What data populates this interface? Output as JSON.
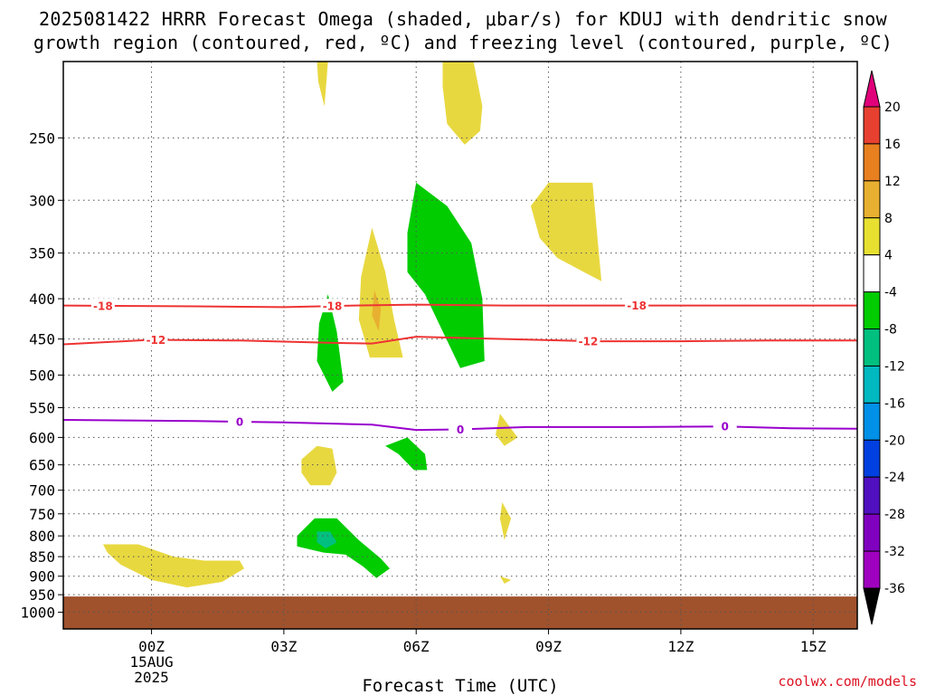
{
  "title_line1": "2025081422 HRRR Forecast Omega (shaded, μbar/s) for KDUJ with dendritic snow",
  "title_line2": "growth region (contoured, red, ºC) and freezing level (contoured, purple, ºC)",
  "credit": "coolwx.com/models",
  "chart_data": {
    "type": "heatmap",
    "xlabel": "Forecast Time (UTC)",
    "x_range_hours": [
      -2,
      16
    ],
    "x_ticks": [
      {
        "hour": 0,
        "lines": [
          "00Z",
          "15AUG",
          "2025"
        ]
      },
      {
        "hour": 3,
        "lines": [
          "03Z"
        ]
      },
      {
        "hour": 6,
        "lines": [
          "06Z"
        ]
      },
      {
        "hour": 9,
        "lines": [
          "09Z"
        ]
      },
      {
        "hour": 12,
        "lines": [
          "12Z"
        ]
      },
      {
        "hour": 15,
        "lines": [
          "15Z"
        ]
      }
    ],
    "y_scale": "log-pressure",
    "y_range_hpa": [
      200,
      1050
    ],
    "y_ticks": [
      250,
      300,
      350,
      400,
      450,
      500,
      550,
      600,
      650,
      700,
      750,
      800,
      850,
      900,
      950,
      1000
    ],
    "grid": true,
    "colorbar": {
      "levels": [
        20,
        16,
        12,
        8,
        4,
        -4,
        -8,
        -12,
        -16,
        -20,
        -24,
        -28,
        -32,
        -36
      ],
      "colors": [
        "#e8e030",
        "#e8b030",
        "#e88020",
        "#e84030",
        "#ffffff",
        "#00cc00",
        "#00c080",
        "#00b8c0",
        "#0080e0",
        "#0040e0",
        "#2020c0",
        "#6000c0",
        "#a000c0",
        "#aaaaaa"
      ],
      "colors_order": "bottom-to-top from -36 to 20 band colors listed top-down below",
      "band_colors_top_down": [
        "#e84030",
        "#e88020",
        "#e8b030",
        "#e8e030",
        "#ffffff",
        "#00cc00",
        "#00c080",
        "#00b8c0",
        "#0090e8",
        "#0040e0",
        "#5010c0",
        "#8000c0",
        "#a000c0",
        "#aaaaaa"
      ],
      "top_arrow_color": "#e0007a",
      "bottom_arrow_color": "#000000"
    },
    "terrain": {
      "pressure_hpa": 955,
      "color": "#a0522d"
    },
    "omega_regions": [
      {
        "color": "#e8d840",
        "value_range": [
          4,
          8
        ],
        "points": [
          [
            -1.1,
            820
          ],
          [
            -0.3,
            820
          ],
          [
            0.5,
            850
          ],
          [
            1.2,
            860
          ],
          [
            2.0,
            860
          ],
          [
            2.1,
            880
          ],
          [
            1.6,
            915
          ],
          [
            0.8,
            930
          ],
          [
            0.0,
            910
          ],
          [
            -0.7,
            870
          ],
          [
            -1.0,
            840
          ]
        ]
      },
      {
        "color": "#e8d840",
        "value_range": [
          4,
          8
        ],
        "points": [
          [
            3.75,
            200
          ],
          [
            4.0,
            200
          ],
          [
            3.92,
            228
          ],
          [
            3.78,
            212
          ]
        ]
      },
      {
        "color": "#e8d840",
        "value_range": [
          4,
          8
        ],
        "points": [
          [
            6.6,
            200
          ],
          [
            7.3,
            200
          ],
          [
            7.5,
            228
          ],
          [
            7.45,
            245
          ],
          [
            7.1,
            255
          ],
          [
            6.7,
            240
          ],
          [
            6.6,
            215
          ]
        ]
      },
      {
        "color": "#e8d840",
        "value_range": [
          4,
          8
        ],
        "points": [
          [
            8.6,
            305
          ],
          [
            9.0,
            285
          ],
          [
            10.0,
            285
          ],
          [
            10.1,
            330
          ],
          [
            10.2,
            380
          ],
          [
            9.8,
            370
          ],
          [
            9.2,
            355
          ],
          [
            8.8,
            335
          ]
        ]
      },
      {
        "color": "#e8d840",
        "value_range": [
          4,
          8
        ],
        "points": [
          [
            5.0,
            325
          ],
          [
            5.3,
            370
          ],
          [
            5.5,
            425
          ],
          [
            5.7,
            475
          ],
          [
            4.95,
            475
          ],
          [
            4.7,
            425
          ],
          [
            4.75,
            375
          ]
        ]
      },
      {
        "color": "#e8b030",
        "value_range": [
          8,
          12
        ],
        "points": [
          [
            5.05,
            390
          ],
          [
            5.2,
            412
          ],
          [
            5.15,
            440
          ],
          [
            5.0,
            420
          ]
        ]
      },
      {
        "color": "#e8d840",
        "value_range": [
          4,
          8
        ],
        "points": [
          [
            3.4,
            640
          ],
          [
            3.75,
            615
          ],
          [
            4.1,
            620
          ],
          [
            4.2,
            665
          ],
          [
            4.05,
            690
          ],
          [
            3.6,
            690
          ],
          [
            3.4,
            665
          ]
        ]
      },
      {
        "color": "#e8d840",
        "value_range": [
          4,
          8
        ],
        "points": [
          [
            7.9,
            560
          ],
          [
            8.3,
            600
          ],
          [
            8.0,
            615
          ],
          [
            7.8,
            595
          ]
        ]
      },
      {
        "color": "#e8d840",
        "value_range": [
          4,
          8
        ],
        "points": [
          [
            7.95,
            725
          ],
          [
            8.15,
            760
          ],
          [
            8.0,
            810
          ],
          [
            7.9,
            760
          ]
        ]
      },
      {
        "color": "#e8d840",
        "value_range": [
          4,
          8
        ],
        "points": [
          [
            7.9,
            900
          ],
          [
            8.15,
            910
          ],
          [
            8.0,
            920
          ]
        ]
      },
      {
        "color": "#00cc00",
        "value_range": [
          -8,
          -4
        ],
        "points": [
          [
            5.8,
            330
          ],
          [
            6.0,
            285
          ],
          [
            6.7,
            305
          ],
          [
            7.25,
            340
          ],
          [
            7.5,
            400
          ],
          [
            7.55,
            480
          ],
          [
            7.0,
            490
          ],
          [
            6.6,
            440
          ],
          [
            6.2,
            395
          ],
          [
            5.8,
            370
          ]
        ]
      },
      {
        "color": "#00cc00",
        "value_range": [
          -8,
          -4
        ],
        "points": [
          [
            4.0,
            395
          ],
          [
            4.2,
            440
          ],
          [
            4.35,
            510
          ],
          [
            4.1,
            525
          ],
          [
            3.75,
            480
          ],
          [
            3.8,
            430
          ]
        ]
      },
      {
        "color": "#00cc00",
        "value_range": [
          -8,
          -4
        ],
        "points": [
          [
            5.3,
            615
          ],
          [
            5.8,
            600
          ],
          [
            6.2,
            630
          ],
          [
            6.25,
            660
          ],
          [
            5.95,
            660
          ],
          [
            5.6,
            630
          ]
        ]
      },
      {
        "color": "#00cc00",
        "value_range": [
          -8,
          -4
        ],
        "points": [
          [
            3.3,
            800
          ],
          [
            3.7,
            760
          ],
          [
            4.2,
            760
          ],
          [
            4.7,
            810
          ],
          [
            5.2,
            855
          ],
          [
            5.4,
            880
          ],
          [
            5.1,
            905
          ],
          [
            4.8,
            875
          ],
          [
            4.4,
            845
          ],
          [
            3.9,
            840
          ],
          [
            3.3,
            825
          ]
        ]
      },
      {
        "color": "#00c080",
        "value_range": [
          -12,
          -8
        ],
        "points": [
          [
            3.75,
            790
          ],
          [
            4.05,
            790
          ],
          [
            4.2,
            815
          ],
          [
            3.95,
            830
          ],
          [
            3.75,
            815
          ]
        ]
      }
    ],
    "contours": [
      {
        "value": -18,
        "label": "-18",
        "color": "#ee3333",
        "label_hours": [
          -1.1,
          4.1,
          11.0
        ],
        "points": [
          [
            -2,
            408
          ],
          [
            1,
            409
          ],
          [
            3,
            410
          ],
          [
            4.6,
            408
          ],
          [
            6,
            407
          ],
          [
            8,
            408
          ],
          [
            10,
            408
          ],
          [
            12,
            408
          ],
          [
            14,
            408
          ],
          [
            16,
            408
          ]
        ]
      },
      {
        "value": -12,
        "label": "-12",
        "color": "#ee3333",
        "label_hours": [
          0.1,
          9.9
        ],
        "points": [
          [
            -2,
            457
          ],
          [
            0,
            451
          ],
          [
            2,
            452
          ],
          [
            4,
            455
          ],
          [
            5,
            456
          ],
          [
            6,
            447
          ],
          [
            8,
            450
          ],
          [
            10,
            453
          ],
          [
            12,
            453
          ],
          [
            14,
            452
          ],
          [
            16,
            452
          ]
        ]
      },
      {
        "value": 0,
        "label": "0",
        "color": "#9900cc",
        "label_hours": [
          2.0,
          7.0,
          13.0
        ],
        "points": [
          [
            -2,
            570
          ],
          [
            1,
            572
          ],
          [
            3,
            574
          ],
          [
            5,
            578
          ],
          [
            6,
            587
          ],
          [
            7,
            586
          ],
          [
            8.5,
            582
          ],
          [
            11,
            582
          ],
          [
            13,
            581
          ],
          [
            14.5,
            584
          ],
          [
            16,
            585
          ]
        ]
      }
    ]
  }
}
